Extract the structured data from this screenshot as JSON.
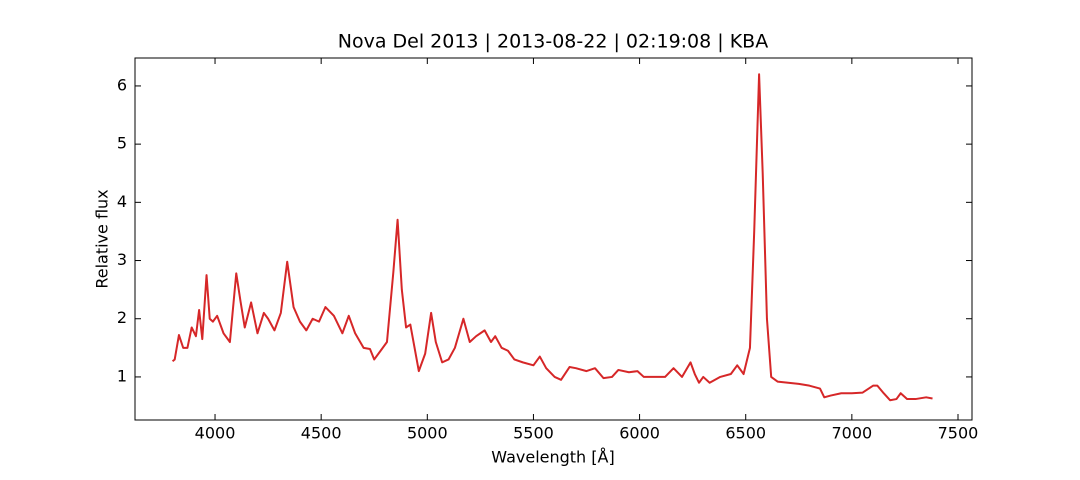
{
  "chart_data": {
    "type": "line",
    "title": "Nova Del 2013 | 2013-08-22 | 02:19:08 | KBA",
    "xlabel": "Wavelength [Å]",
    "ylabel": "Relative flux",
    "xlim": [
      3623,
      7566
    ],
    "ylim": [
      0.26,
      6.48
    ],
    "xticks": [
      4000,
      4500,
      5000,
      5500,
      6000,
      6500,
      7000,
      7500
    ],
    "yticks": [
      1,
      2,
      3,
      4,
      5,
      6
    ],
    "grid": false,
    "series": [
      {
        "name": "Nova Del 2013",
        "color": "#d62728",
        "x": [
          3800,
          3810,
          3830,
          3850,
          3870,
          3890,
          3910,
          3925,
          3940,
          3960,
          3975,
          3990,
          4010,
          4040,
          4070,
          4100,
          4120,
          4140,
          4170,
          4200,
          4230,
          4250,
          4280,
          4310,
          4340,
          4370,
          4400,
          4430,
          4460,
          4490,
          4520,
          4560,
          4600,
          4630,
          4660,
          4700,
          4730,
          4750,
          4780,
          4810,
          4840,
          4860,
          4880,
          4900,
          4920,
          4940,
          4960,
          4990,
          5018,
          5040,
          5070,
          5100,
          5130,
          5170,
          5200,
          5230,
          5270,
          5300,
          5320,
          5350,
          5380,
          5410,
          5450,
          5500,
          5530,
          5560,
          5600,
          5630,
          5670,
          5700,
          5750,
          5790,
          5830,
          5870,
          5900,
          5950,
          5990,
          6020,
          6080,
          6120,
          6160,
          6200,
          6240,
          6260,
          6280,
          6300,
          6330,
          6380,
          6430,
          6460,
          6490,
          6520,
          6540,
          6563,
          6580,
          6600,
          6620,
          6650,
          6700,
          6750,
          6800,
          6850,
          6870,
          6900,
          6950,
          7000,
          7050,
          7100,
          7120,
          7150,
          7180,
          7210,
          7230,
          7260,
          7300,
          7350,
          7380
        ],
        "values": [
          1.27,
          1.3,
          1.72,
          1.5,
          1.5,
          1.85,
          1.7,
          2.15,
          1.65,
          2.75,
          2.0,
          1.95,
          2.05,
          1.75,
          1.6,
          2.78,
          2.3,
          1.85,
          2.28,
          1.75,
          2.1,
          2.0,
          1.8,
          2.1,
          2.98,
          2.2,
          1.95,
          1.8,
          2.0,
          1.95,
          2.2,
          2.05,
          1.75,
          2.05,
          1.75,
          1.5,
          1.48,
          1.3,
          1.45,
          1.6,
          2.8,
          3.7,
          2.5,
          1.85,
          1.9,
          1.5,
          1.1,
          1.4,
          2.1,
          1.6,
          1.25,
          1.3,
          1.5,
          2.0,
          1.6,
          1.7,
          1.8,
          1.6,
          1.7,
          1.5,
          1.45,
          1.3,
          1.25,
          1.2,
          1.35,
          1.15,
          1.0,
          0.95,
          1.17,
          1.15,
          1.1,
          1.15,
          0.98,
          1.0,
          1.12,
          1.08,
          1.1,
          1.0,
          1.0,
          1.0,
          1.15,
          1.0,
          1.25,
          1.05,
          0.9,
          1.0,
          0.9,
          1.0,
          1.05,
          1.2,
          1.05,
          1.5,
          3.5,
          6.2,
          4.5,
          2.0,
          1.0,
          0.92,
          0.9,
          0.88,
          0.85,
          0.8,
          0.65,
          0.68,
          0.72,
          0.72,
          0.73,
          0.85,
          0.85,
          0.72,
          0.6,
          0.62,
          0.72,
          0.62,
          0.62,
          0.65,
          0.63
        ]
      }
    ]
  }
}
